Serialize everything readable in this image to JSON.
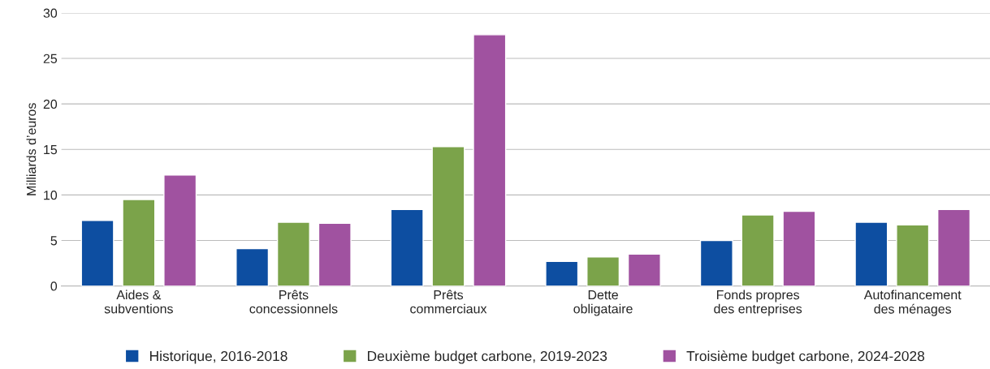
{
  "chart_data": {
    "type": "bar",
    "ylabel": "Milliards d’euros",
    "categories": [
      "Aides &\nsubventions",
      "Prêts\nconcessionnels",
      "Prêts\ncommerciaux",
      "Dette\nobligataire",
      "Fonds propres\ndes entreprises",
      "Autofinancement\ndes ménages"
    ],
    "series": [
      {
        "name": "Historique, 2016-2018",
        "color": "#0d4ea1",
        "values": [
          7.2,
          4.1,
          8.4,
          2.7,
          5.0,
          7.0
        ]
      },
      {
        "name": "Deuxième budget carbone, 2019-2023",
        "color": "#7ba34a",
        "values": [
          9.5,
          7.0,
          15.3,
          3.2,
          7.8,
          6.7
        ]
      },
      {
        "name": "Troisième budget carbone, 2024-2028",
        "color": "#a052a0",
        "values": [
          12.2,
          6.9,
          27.6,
          3.5,
          8.2,
          8.4
        ]
      }
    ],
    "ylim": [
      0,
      30
    ],
    "yticks": [
      0,
      5,
      10,
      15,
      20,
      25,
      30
    ],
    "grid": "y",
    "legend": "bottom"
  }
}
